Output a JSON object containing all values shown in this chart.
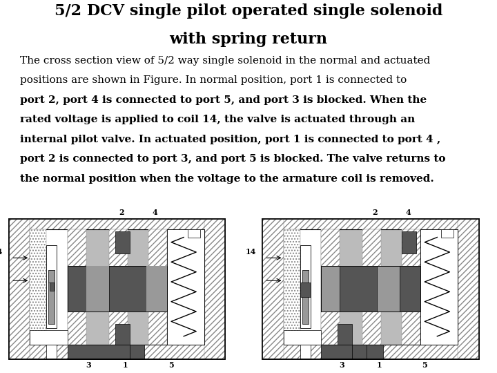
{
  "title_line1": "5/2 DCV single pilot operated single solenoid",
  "title_line2": "with spring return",
  "title_fontsize": 16,
  "body_lines": [
    {
      "text": "The cross section view of 5/2 way single solenoid in the normal and actuated",
      "bold": false
    },
    {
      "text": "positions are shown in Figure. In normal position, port 1 is connected to",
      "bold": false
    },
    {
      "text": "port 2, port 4 is connected to port 5, and port 3 is blocked. When the",
      "bold": true
    },
    {
      "text": "rated voltage is applied to coil 14, the valve is actuated through an",
      "bold": true
    },
    {
      "text": "internal pilot valve. In actuated position, port 1 is connected to port 4 ,",
      "bold": true
    },
    {
      "text": "port 2 is connected to port 3, and port 5 is blocked. The valve returns to",
      "bold": true
    },
    {
      "text": "the normal position when the voltage to the armature coil is removed.",
      "bold": true
    }
  ],
  "body_fontsize": 11,
  "bg_color": "#ffffff",
  "dark_gray": "#555555",
  "med_gray": "#999999",
  "light_gray": "#bbbbbb",
  "black": "#000000",
  "white": "#ffffff"
}
